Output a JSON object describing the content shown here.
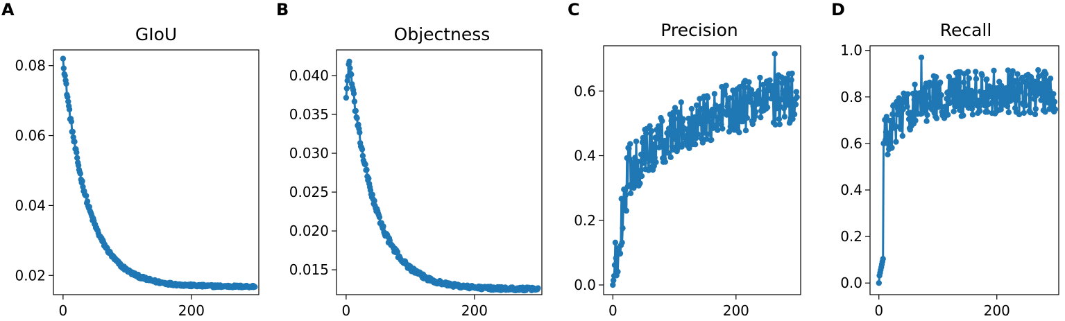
{
  "colors": {
    "series": "#1f77b4"
  },
  "chart_data": [
    {
      "panel": "A",
      "type": "line",
      "title": "GIoU",
      "xlabel": "",
      "ylabel": "",
      "xlim": [
        -15,
        305
      ],
      "ylim": [
        0.0145,
        0.0845
      ],
      "xticks": [
        {
          "v": 0,
          "label": "0"
        },
        {
          "v": 200,
          "label": "200"
        }
      ],
      "yticks": [
        {
          "v": 0.02,
          "label": "0.02"
        },
        {
          "v": 0.04,
          "label": "0.04"
        },
        {
          "v": 0.06,
          "label": "0.06"
        },
        {
          "v": 0.08,
          "label": "0.08"
        }
      ],
      "curve": "decay",
      "n_epochs": 300,
      "series": [
        {
          "name": "GIoU",
          "x_range": [
            0,
            299
          ],
          "start": 0.082,
          "end": 0.0168,
          "tau": 38,
          "noise": 0.0008
        }
      ]
    },
    {
      "panel": "B",
      "type": "line",
      "title": "Objectness",
      "xlabel": "",
      "ylabel": "",
      "xlim": [
        -15,
        305
      ],
      "ylim": [
        0.0118,
        0.0433
      ],
      "xticks": [
        {
          "v": 0,
          "label": "0"
        },
        {
          "v": 200,
          "label": "200"
        }
      ],
      "yticks": [
        {
          "v": 0.015,
          "label": "0.015"
        },
        {
          "v": 0.02,
          "label": "0.020"
        },
        {
          "v": 0.025,
          "label": "0.025"
        },
        {
          "v": 0.03,
          "label": "0.030"
        },
        {
          "v": 0.035,
          "label": "0.035"
        },
        {
          "v": 0.04,
          "label": "0.040"
        }
      ],
      "curve": "rise-decay",
      "n_epochs": 300,
      "series": [
        {
          "name": "Objectness",
          "x_range": [
            0,
            299
          ],
          "start": 0.0375,
          "peak": 0.0418,
          "peak_at": 5,
          "end": 0.0125,
          "tau": 40,
          "noise": 0.0005
        }
      ]
    },
    {
      "panel": "C",
      "type": "line",
      "title": "Precision",
      "xlabel": "",
      "ylabel": "",
      "xlim": [
        -15,
        305
      ],
      "ylim": [
        -0.03,
        0.74
      ],
      "xticks": [
        {
          "v": 0,
          "label": "0"
        },
        {
          "v": 200,
          "label": "200"
        }
      ],
      "yticks": [
        {
          "v": 0.0,
          "label": "0.0"
        },
        {
          "v": 0.2,
          "label": "0.2"
        },
        {
          "v": 0.4,
          "label": "0.4"
        },
        {
          "v": 0.6,
          "label": "0.6"
        }
      ],
      "curve": "noisy-growth",
      "n_epochs": 300,
      "series": [
        {
          "name": "Precision",
          "x_range": [
            0,
            299
          ],
          "start": 0.0,
          "end": 0.6,
          "noise": 0.05,
          "max": 0.715,
          "max_at": 263
        }
      ]
    },
    {
      "panel": "D",
      "type": "line",
      "title": "Recall",
      "xlabel": "",
      "ylabel": "",
      "xlim": [
        -15,
        305
      ],
      "ylim": [
        -0.05,
        1.02
      ],
      "xticks": [
        {
          "v": 0,
          "label": "0"
        },
        {
          "v": 200,
          "label": "200"
        }
      ],
      "yticks": [
        {
          "v": 0.0,
          "label": "0.0"
        },
        {
          "v": 0.2,
          "label": "0.2"
        },
        {
          "v": 0.4,
          "label": "0.4"
        },
        {
          "v": 0.6,
          "label": "0.6"
        },
        {
          "v": 0.8,
          "label": "0.8"
        },
        {
          "v": 1.0,
          "label": "1.0"
        }
      ],
      "curve": "fast-saturate",
      "n_epochs": 300,
      "series": [
        {
          "name": "Recall",
          "x_range": [
            0,
            299
          ],
          "start": 0.0,
          "end": 0.82,
          "noise": 0.06,
          "max": 0.97,
          "max_at": 72
        }
      ]
    }
  ]
}
